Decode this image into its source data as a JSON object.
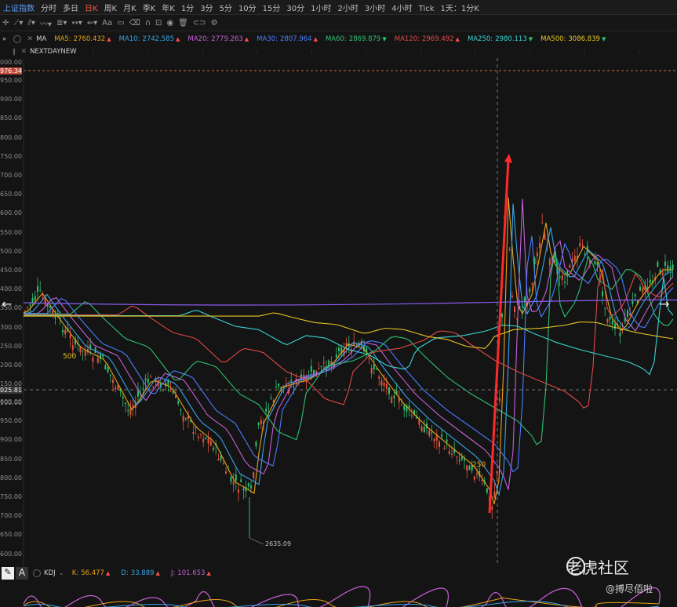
{
  "toolbar": {
    "index_name": "上证指数",
    "periods": [
      "分时",
      "多日",
      "日K",
      "周K",
      "月K",
      "季K",
      "年K",
      "1分",
      "3分",
      "5分",
      "10分",
      "15分",
      "30分",
      "1小时",
      "2小时",
      "3小时",
      "4小时",
      "Tick",
      "1天：1分K"
    ],
    "active_period": "日K"
  },
  "indicators": {
    "ma_label": "MA",
    "items": [
      {
        "label": "MA5:",
        "value": "2760.432",
        "color": "#e8a317",
        "dir": "up"
      },
      {
        "label": "MA10:",
        "value": "2742.585",
        "color": "#38a3e8",
        "dir": "up"
      },
      {
        "label": "MA20:",
        "value": "2779.263",
        "color": "#c65fd6",
        "dir": "up"
      },
      {
        "label": "MA30:",
        "value": "2807.964",
        "color": "#4a7cff",
        "dir": "up"
      },
      {
        "label": "MA60:",
        "value": "2869.879",
        "color": "#2fbf71",
        "dir": "dn"
      },
      {
        "label": "MA120:",
        "value": "2969.492",
        "color": "#e04848",
        "dir": "up"
      },
      {
        "label": "MA250:",
        "value": "2980.113",
        "color": "#3ad3d3",
        "dir": "dn"
      },
      {
        "label": "MA500:",
        "value": "3086.839",
        "color": "#e8c520",
        "dir": "dn"
      }
    ],
    "row2_label": "NEXTDAYNEW"
  },
  "yaxis": {
    "labels": [
      {
        "text": "000.00"
      },
      {
        "text": "976.34",
        "highlight": true
      },
      {
        "text": "950.00"
      },
      {
        "text": "900.00"
      },
      {
        "text": "850.00"
      },
      {
        "text": "800.00"
      },
      {
        "text": "750.00"
      },
      {
        "text": "700.00"
      },
      {
        "text": "650.00"
      },
      {
        "text": "600.00"
      },
      {
        "text": "550.00"
      },
      {
        "text": "500.00"
      },
      {
        "text": "450.00"
      },
      {
        "text": "400.00"
      },
      {
        "text": "350.00"
      },
      {
        "text": "300.00"
      },
      {
        "text": "250.00"
      },
      {
        "text": "200.00"
      },
      {
        "text": "150.00"
      },
      {
        "text": "100.00"
      },
      {
        "text": "025.81",
        "highlight2": true
      },
      {
        "text": "000.00"
      },
      {
        "text": "950.00"
      },
      {
        "text": "900.00"
      },
      {
        "text": "850.00"
      },
      {
        "text": "800.00"
      },
      {
        "text": "750.00"
      },
      {
        "text": "700.00"
      },
      {
        "text": "650.00"
      },
      {
        "text": "600.00"
      }
    ]
  },
  "annotations": {
    "low_price": "2635.09",
    "label_500": "500",
    "label_250": "250"
  },
  "kdj": {
    "name": "KDJ",
    "k_label": "K:",
    "k_value": "56.477",
    "d_label": "D:",
    "d_value": "33.889",
    "j_label": "J:",
    "j_value": "101.653"
  },
  "watermark": {
    "title": "老虎社区",
    "user": "@搏尽佰啦"
  }
}
